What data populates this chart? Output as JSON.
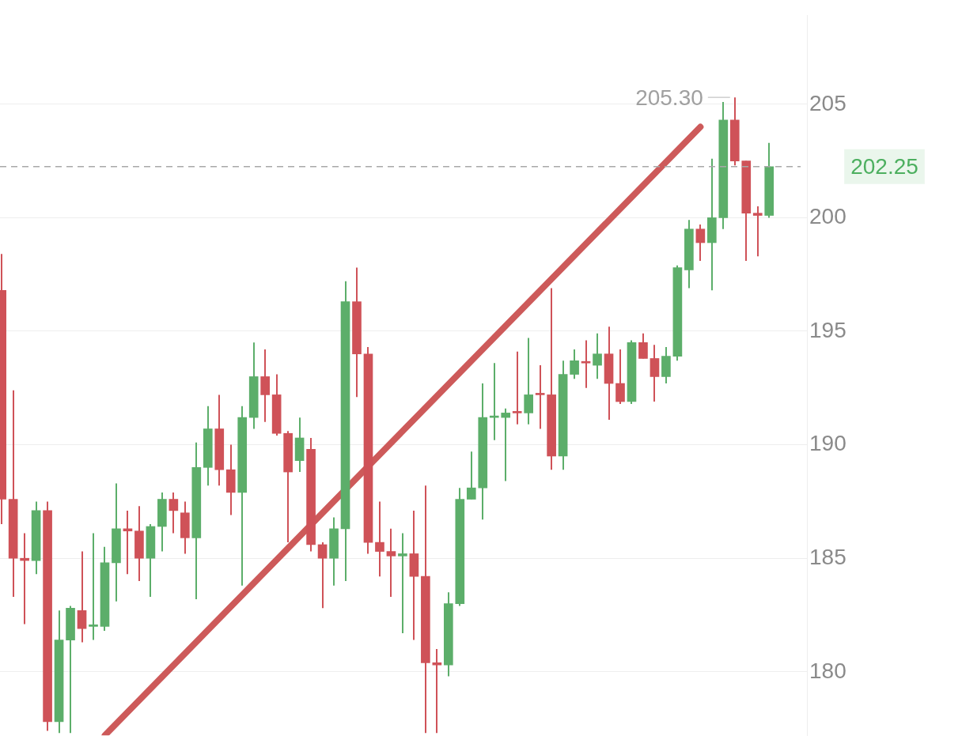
{
  "chart_data": {
    "type": "candlestick",
    "categories": [
      null,
      null,
      null,
      null,
      null,
      null,
      null,
      null,
      null,
      null,
      null,
      null,
      null,
      null,
      null,
      null,
      null,
      null,
      null,
      null,
      null,
      null,
      null,
      null,
      null,
      null,
      null,
      null,
      null,
      null,
      null,
      null,
      null,
      null,
      null,
      null,
      null,
      null,
      null,
      null,
      null,
      null,
      null,
      null,
      null,
      null,
      null,
      null,
      null,
      null,
      null,
      null,
      null,
      null,
      null,
      null,
      null,
      null,
      null,
      null,
      null,
      null,
      null,
      null,
      null,
      null,
      null,
      null
    ],
    "ohlc": [
      [
        196.8,
        198.4,
        186.5,
        187.6
      ],
      [
        187.6,
        192.4,
        183.3,
        185.0
      ],
      [
        185.0,
        186.1,
        182.1,
        184.9
      ],
      [
        184.9,
        187.5,
        184.3,
        187.1
      ],
      [
        187.1,
        187.5,
        177.4,
        177.8
      ],
      [
        177.8,
        182.7,
        177.3,
        181.4
      ],
      [
        181.4,
        182.9,
        177.3,
        182.8
      ],
      [
        182.7,
        185.3,
        181.3,
        181.9
      ],
      [
        182.0,
        186.1,
        181.4,
        182.0
      ],
      [
        182.0,
        185.5,
        181.8,
        184.8
      ],
      [
        184.8,
        188.3,
        183.1,
        186.3
      ],
      [
        186.3,
        187.1,
        184.3,
        186.2
      ],
      [
        186.2,
        187.3,
        184.0,
        185.0
      ],
      [
        185.0,
        186.5,
        183.3,
        186.4
      ],
      [
        186.4,
        187.9,
        185.3,
        187.6
      ],
      [
        187.6,
        187.9,
        186.1,
        187.1
      ],
      [
        187.0,
        187.5,
        185.2,
        185.9
      ],
      [
        185.9,
        190.1,
        183.2,
        189.0
      ],
      [
        189.0,
        191.7,
        188.2,
        190.7
      ],
      [
        190.7,
        192.2,
        188.2,
        188.9
      ],
      [
        188.9,
        190.0,
        186.9,
        187.9
      ],
      [
        187.9,
        191.7,
        183.8,
        191.2
      ],
      [
        191.2,
        194.5,
        190.7,
        193.0
      ],
      [
        193.0,
        194.2,
        191.0,
        192.2
      ],
      [
        192.2,
        193.1,
        190.4,
        190.5
      ],
      [
        190.5,
        190.6,
        185.7,
        188.8
      ],
      [
        189.3,
        191.2,
        188.8,
        190.3
      ],
      [
        189.8,
        190.3,
        185.3,
        185.6
      ],
      [
        185.6,
        185.7,
        182.8,
        185.0
      ],
      [
        185.0,
        186.8,
        183.8,
        186.3
      ],
      [
        186.3,
        197.2,
        184.0,
        196.3
      ],
      [
        196.3,
        197.8,
        192.1,
        194.0
      ],
      [
        194.0,
        194.3,
        185.2,
        185.7
      ],
      [
        185.7,
        187.5,
        184.2,
        185.3
      ],
      [
        185.3,
        186.3,
        183.3,
        185.1
      ],
      [
        185.1,
        186.1,
        181.7,
        185.2
      ],
      [
        185.2,
        187.1,
        181.4,
        184.2
      ],
      [
        184.2,
        188.2,
        177.3,
        180.4
      ],
      [
        180.4,
        181.0,
        177.3,
        180.3
      ],
      [
        180.3,
        183.5,
        179.8,
        183.0
      ],
      [
        183.0,
        188.1,
        182.9,
        187.6
      ],
      [
        187.6,
        189.7,
        187.6,
        188.1
      ],
      [
        188.1,
        192.7,
        186.7,
        191.2
      ],
      [
        191.2,
        193.6,
        190.2,
        191.2
      ],
      [
        191.2,
        191.6,
        188.4,
        191.4
      ],
      [
        191.4,
        194.1,
        190.9,
        191.4
      ],
      [
        191.4,
        194.7,
        190.9,
        192.2
      ],
      [
        192.2,
        193.5,
        190.7,
        192.2
      ],
      [
        192.2,
        196.9,
        188.9,
        189.5
      ],
      [
        189.5,
        193.7,
        188.9,
        193.1
      ],
      [
        193.1,
        194.2,
        192.9,
        193.7
      ],
      [
        193.6,
        194.6,
        192.5,
        193.6
      ],
      [
        193.5,
        194.9,
        192.9,
        194.0
      ],
      [
        194.0,
        195.2,
        191.1,
        192.7
      ],
      [
        192.7,
        194.2,
        191.8,
        191.9
      ],
      [
        191.9,
        194.6,
        191.8,
        194.5
      ],
      [
        194.5,
        194.9,
        193.8,
        193.8
      ],
      [
        193.8,
        194.4,
        191.9,
        193.0
      ],
      [
        193.0,
        194.3,
        192.7,
        193.9
      ],
      [
        193.9,
        197.9,
        193.7,
        197.8
      ],
      [
        197.7,
        199.9,
        196.9,
        199.5
      ],
      [
        199.5,
        199.7,
        198.1,
        198.9
      ],
      [
        198.9,
        202.6,
        196.8,
        200.0
      ],
      [
        200.0,
        205.1,
        199.5,
        204.3
      ],
      [
        204.3,
        205.3,
        202.3,
        202.5
      ],
      [
        202.5,
        202.5,
        198.1,
        200.2
      ],
      [
        200.2,
        200.5,
        198.3,
        200.1
      ],
      [
        200.1,
        203.3,
        200.0,
        202.25
      ]
    ],
    "colors": [
      "#cf5258",
      "#cf5258",
      "#cf5258",
      "#5cae6a",
      "#cf5258",
      "#5cae6a",
      "#5cae6a",
      "#cf5258",
      "#5cae6a",
      "#5cae6a",
      "#5cae6a",
      "#cf5258",
      "#cf5258",
      "#5cae6a",
      "#5cae6a",
      "#cf5258",
      "#cf5258",
      "#5cae6a",
      "#5cae6a",
      "#cf5258",
      "#cf5258",
      "#5cae6a",
      "#5cae6a",
      "#cf5258",
      "#cf5258",
      "#cf5258",
      "#5cae6a",
      "#cf5258",
      "#cf5258",
      "#5cae6a",
      "#5cae6a",
      "#cf5258",
      "#cf5258",
      "#cf5258",
      "#cf5258",
      "#5cae6a",
      "#cf5258",
      "#cf5258",
      "#cf5258",
      "#5cae6a",
      "#5cae6a",
      "#5cae6a",
      "#5cae6a",
      "#5cae6a",
      "#5cae6a",
      "#cf5258",
      "#5cae6a",
      "#cf5258",
      "#cf5258",
      "#5cae6a",
      "#5cae6a",
      "#cf5258",
      "#5cae6a",
      "#cf5258",
      "#cf5258",
      "#5cae6a",
      "#cf5258",
      "#cf5258",
      "#5cae6a",
      "#5cae6a",
      "#5cae6a",
      "#cf5258",
      "#5cae6a",
      "#5cae6a",
      "#cf5258",
      "#cf5258",
      "#cf5258",
      "#5cae6a"
    ],
    "series": [
      {
        "type": "line",
        "color": "#cd5a5a",
        "values": [
          null,
          null,
          null,
          null,
          null,
          null,
          null,
          null,
          null,
          177.2,
          null,
          null,
          null,
          null,
          null,
          null,
          null,
          null,
          null,
          null,
          null,
          null,
          null,
          null,
          null,
          null,
          null,
          null,
          null,
          null,
          null,
          null,
          null,
          null,
          null,
          null,
          null,
          null,
          null,
          null,
          null,
          null,
          null,
          null,
          null,
          null,
          null,
          null,
          null,
          null,
          null,
          null,
          null,
          null,
          null,
          null,
          null,
          null,
          null,
          null,
          null,
          204.0,
          null,
          null,
          null,
          null,
          null,
          null
        ]
      }
    ],
    "ylim": [
      177.2,
      208.9
    ],
    "yticks": [
      180,
      185,
      190,
      195,
      200,
      205
    ],
    "ref_lines": [
      {
        "axis": "y",
        "value": 202.25,
        "label": "202.25",
        "color": "#a8a8a8",
        "line_style": "dashed"
      }
    ],
    "annotations": [
      "205.30"
    ],
    "grid": "y",
    "legend": false,
    "tick_labels": "y"
  }
}
